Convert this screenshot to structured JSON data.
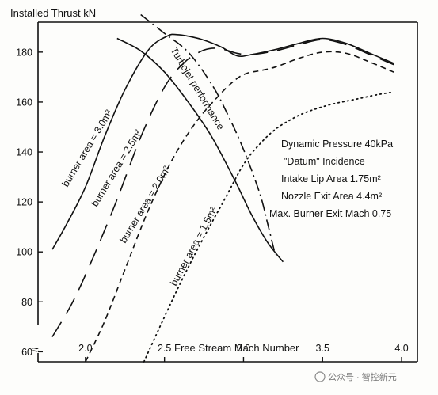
{
  "chart_data": {
    "type": "line",
    "ylabel": "Installed Thrust  kN",
    "xlabel": "Free Stream Mach Number",
    "xlim": [
      1.7,
      4.1
    ],
    "ylim": [
      56,
      192
    ],
    "x_ticks": [
      {
        "value": 2.0,
        "label": "2.0"
      },
      {
        "value": 2.5,
        "label": "2.5"
      },
      {
        "value": 3.0,
        "label": "3.0"
      },
      {
        "value": 3.5,
        "label": "3.5"
      },
      {
        "value": 4.0,
        "label": "4.0"
      }
    ],
    "y_ticks": [
      {
        "value": 60,
        "label": "60"
      },
      {
        "value": 80,
        "label": "80"
      },
      {
        "value": 100,
        "label": "100"
      },
      {
        "value": 120,
        "label": "120"
      },
      {
        "value": 140,
        "label": "140"
      },
      {
        "value": 160,
        "label": "160"
      },
      {
        "value": 180,
        "label": "180"
      }
    ],
    "axis_break_symbol": "≈",
    "grid": false,
    "series": [
      {
        "name": "burner area = 3.0m²",
        "style": "solid",
        "x": [
          1.79,
          1.88,
          2.0,
          2.12,
          2.25,
          2.4,
          2.52,
          2.58,
          2.64,
          2.74,
          2.86,
          2.96,
          3.05,
          3.2,
          3.35,
          3.5,
          3.65,
          3.8,
          3.95
        ],
        "y": [
          101,
          111,
          126,
          146,
          165,
          181,
          186.5,
          187,
          186.5,
          185,
          182,
          178.5,
          179,
          181,
          183.5,
          185.5,
          183.5,
          179.5,
          175.5
        ]
      },
      {
        "name": "burner area = 2.5m²",
        "style": "long-dash",
        "x": [
          1.79,
          1.92,
          2.05,
          2.2,
          2.35,
          2.5,
          2.62,
          2.72,
          2.8,
          2.88,
          2.96,
          3.05,
          3.2,
          3.35,
          3.5,
          3.65,
          3.8,
          3.95
        ],
        "y": [
          66,
          80,
          98,
          121,
          146,
          166,
          175.5,
          180,
          181.5,
          181,
          179.5,
          179,
          180.5,
          183,
          185,
          183,
          179,
          175
        ]
      },
      {
        "name": "burner area = 2.0m²",
        "style": "short-dash",
        "x": [
          2.0,
          2.12,
          2.25,
          2.4,
          2.55,
          2.7,
          2.85,
          2.95,
          3.02,
          3.1,
          3.2,
          3.35,
          3.5,
          3.65,
          3.8,
          3.95
        ],
        "y": [
          56,
          72,
          93,
          117,
          137,
          152,
          163,
          169,
          171.5,
          172.5,
          174,
          177.5,
          180,
          179.5,
          176,
          172
        ]
      },
      {
        "name": "burner area = 1.5m²",
        "style": "dotted",
        "x": [
          2.37,
          2.5,
          2.62,
          2.75,
          2.88,
          3.0,
          3.1,
          3.2,
          3.3,
          3.4,
          3.55,
          3.7,
          3.85,
          3.95
        ],
        "y": [
          56,
          74,
          90,
          106,
          121,
          135,
          143,
          149,
          153,
          156,
          159,
          161,
          163,
          164
        ]
      },
      {
        "name": "Turbojet performance",
        "style": "dash-dot",
        "x": [
          2.35,
          2.5,
          2.65,
          2.8,
          2.9,
          3.0,
          3.1,
          3.15,
          3.2
        ],
        "y": [
          195,
          187.5,
          180,
          167,
          155,
          141,
          124,
          112,
          99
        ]
      },
      {
        "name": "",
        "style": "solid",
        "x": [
          2.2,
          2.35,
          2.5,
          2.65,
          2.8,
          2.95,
          3.05,
          3.15,
          3.25
        ],
        "y": [
          185.5,
          180.5,
          172,
          160,
          146,
          128,
          115,
          104,
          96
        ]
      }
    ],
    "annotations": [
      "Dynamic Pressure 40kPa",
      "\"Datum\" Incidence",
      "Intake Lip Area 1.75m²",
      "Nozzle Exit Area 4.4m²",
      "Max. Burner Exit Mach 0.75"
    ],
    "curve_labels": [
      "burner area = 3.0m²",
      "burner area = 2.5m²",
      "burner area = 2.0m²",
      "burner area = 1.5m²",
      "Turbojet performance"
    ]
  },
  "watermark": "公众号 · 智控新元"
}
